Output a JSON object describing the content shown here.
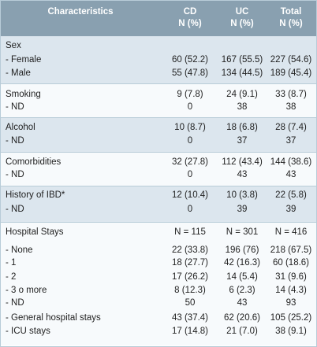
{
  "header": {
    "characteristics": "Characteristics",
    "cd": "CD",
    "uc": "UC",
    "total": "Total",
    "unit": "N (%)"
  },
  "sections": [
    {
      "rows": [
        {
          "label": "Sex",
          "cd": "",
          "uc": "",
          "total": ""
        },
        {
          "label": "- Female",
          "cd": "60 (52.2)",
          "uc": "167 (55.5)",
          "total": "227 (54.6)"
        },
        {
          "label": "- Male",
          "cd": "55 (47.8)",
          "uc": "134 (44.5)",
          "total": "189 (45.4)"
        }
      ]
    },
    {
      "rows": [
        {
          "label": "Smoking",
          "cd": "9 (7.8)",
          "uc": "24 (9.1)",
          "total": "33 (8.7)"
        },
        {
          "label": "- ND",
          "cd": "0",
          "uc": "38",
          "total": "38"
        }
      ]
    },
    {
      "rows": [
        {
          "label": "Alcohol",
          "cd": "10 (8.7)",
          "uc": "18 (6.8)",
          "total": "28 (7.4)"
        },
        {
          "label": "- ND",
          "cd": "0",
          "uc": "37",
          "total": "37"
        }
      ]
    },
    {
      "rows": [
        {
          "label": "Comorbidities",
          "cd": "32 (27.8)",
          "uc": "112 (43.4)",
          "total": "144 (38.6)"
        },
        {
          "label": "- ND",
          "cd": "0",
          "uc": "43",
          "total": "43"
        }
      ]
    },
    {
      "rows": [
        {
          "label": "History of IBD*",
          "cd": "12 (10.4)",
          "uc": "10 (3.8)",
          "total": "22 (5.8)"
        },
        {
          "label": "- ND",
          "cd": "0",
          "uc": "39",
          "total": "39"
        }
      ]
    },
    {
      "rows": [
        {
          "label": "Hospital Stays",
          "cd": "N = 115",
          "uc": "N = 301",
          "total": "N = 416"
        },
        {
          "label": "- None",
          "cd": "22 (33.8)",
          "uc": "196 (76)",
          "total": "218 (67.5)"
        },
        {
          "label": "- 1",
          "cd": "18 (27.7)",
          "uc": "42 (16.3)",
          "total": "60 (18.6)"
        },
        {
          "label": "- 2",
          "cd": "17 (26.2)",
          "uc": "14 (5.4)",
          "total": "31 (9.6)"
        },
        {
          "label": "- 3 o more",
          "cd": "8 (12.3)",
          "uc": "6 (2.3)",
          "total": "14 (4.3)"
        },
        {
          "label": "- ND",
          "cd": "50",
          "uc": "43",
          "total": "93"
        },
        {
          "label": "- General hospital stays",
          "cd": "43 (37.4)",
          "uc": "62 (20.6)",
          "total": "105 (25.2)"
        },
        {
          "label": "- ICU stays",
          "cd": "17 (14.8)",
          "uc": "21 (7.0)",
          "total": "38 (9.1)"
        }
      ]
    }
  ]
}
